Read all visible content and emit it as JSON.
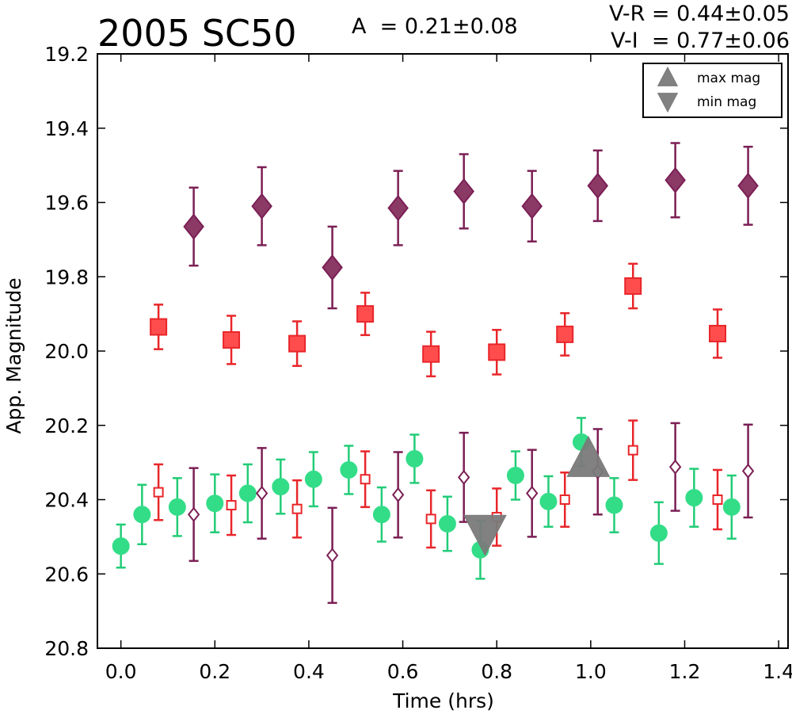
{
  "chart_data": {
    "type": "scatter",
    "title": "2005 SC50",
    "annotations": {
      "amplitude": "A  = 0.21±0.08",
      "v_r": "V-R = 0.44±0.05",
      "v_i": "V-I  = 0.77±0.06"
    },
    "xlabel": "Time (hrs)",
    "ylabel": "App. Magnitude",
    "xlim": [
      -0.05,
      1.42
    ],
    "ylim": [
      20.8,
      19.2
    ],
    "y_inverted": true,
    "x_ticks": [
      0.0,
      0.2,
      0.4,
      0.6,
      0.8,
      1.0,
      1.2,
      1.4
    ],
    "x_tick_labels": [
      "0.0",
      "0.2",
      "0.4",
      "0.6",
      "0.8",
      "1.0",
      "1.2",
      "1.4"
    ],
    "y_ticks": [
      19.2,
      19.4,
      19.6,
      19.8,
      20.0,
      20.2,
      20.4,
      20.6,
      20.8
    ],
    "y_tick_labels": [
      "19.2",
      "19.4",
      "19.6",
      "19.8",
      "20.0",
      "20.2",
      "20.4",
      "20.6",
      "20.8"
    ],
    "grid": false,
    "legend": {
      "placement": "top-right",
      "entries": [
        {
          "label": "max mag",
          "marker": "triangle-up",
          "color": "#7a7a7a"
        },
        {
          "label": "min mag",
          "marker": "triangle-down",
          "color": "#7a7a7a"
        }
      ]
    },
    "series": [
      {
        "marker": "diamond-filled",
        "color": "#7b1f55",
        "face": "#8b3a66",
        "points": [
          {
            "x": 0.155,
            "y": 19.665,
            "err": 0.105
          },
          {
            "x": 0.3,
            "y": 19.61,
            "err": 0.105
          },
          {
            "x": 0.45,
            "y": 19.775,
            "err": 0.11
          },
          {
            "x": 0.59,
            "y": 19.615,
            "err": 0.1
          },
          {
            "x": 0.73,
            "y": 19.57,
            "err": 0.1
          },
          {
            "x": 0.875,
            "y": 19.61,
            "err": 0.095
          },
          {
            "x": 1.015,
            "y": 19.555,
            "err": 0.095
          },
          {
            "x": 1.18,
            "y": 19.54,
            "err": 0.1
          },
          {
            "x": 1.335,
            "y": 19.555,
            "err": 0.105
          }
        ]
      },
      {
        "marker": "square-filled",
        "color": "#e8262a",
        "face": "#ff4d4d",
        "points": [
          {
            "x": 0.08,
            "y": 19.935,
            "err": 0.06
          },
          {
            "x": 0.235,
            "y": 19.97,
            "err": 0.065
          },
          {
            "x": 0.375,
            "y": 19.98,
            "err": 0.06
          },
          {
            "x": 0.52,
            "y": 19.9,
            "err": 0.057
          },
          {
            "x": 0.66,
            "y": 20.008,
            "err": 0.06
          },
          {
            "x": 0.8,
            "y": 20.003,
            "err": 0.06
          },
          {
            "x": 0.945,
            "y": 19.955,
            "err": 0.057
          },
          {
            "x": 1.09,
            "y": 19.825,
            "err": 0.06
          },
          {
            "x": 1.27,
            "y": 19.953,
            "err": 0.065
          }
        ]
      },
      {
        "marker": "circle-filled",
        "color": "#22cc77",
        "face": "#33dd88",
        "points": [
          {
            "x": 0.0,
            "y": 20.525,
            "err": 0.058
          },
          {
            "x": 0.045,
            "y": 20.44,
            "err": 0.08
          },
          {
            "x": 0.12,
            "y": 20.42,
            "err": 0.078
          },
          {
            "x": 0.2,
            "y": 20.41,
            "err": 0.078
          },
          {
            "x": 0.27,
            "y": 20.383,
            "err": 0.078
          },
          {
            "x": 0.34,
            "y": 20.365,
            "err": 0.073
          },
          {
            "x": 0.41,
            "y": 20.345,
            "err": 0.073
          },
          {
            "x": 0.485,
            "y": 20.32,
            "err": 0.065
          },
          {
            "x": 0.555,
            "y": 20.44,
            "err": 0.073
          },
          {
            "x": 0.625,
            "y": 20.29,
            "err": 0.065
          },
          {
            "x": 0.695,
            "y": 20.465,
            "err": 0.073
          },
          {
            "x": 0.765,
            "y": 20.535,
            "err": 0.078
          },
          {
            "x": 0.84,
            "y": 20.335,
            "err": 0.065
          },
          {
            "x": 0.91,
            "y": 20.405,
            "err": 0.068
          },
          {
            "x": 0.98,
            "y": 20.245,
            "err": 0.065
          },
          {
            "x": 1.05,
            "y": 20.415,
            "err": 0.073
          },
          {
            "x": 1.145,
            "y": 20.49,
            "err": 0.083
          },
          {
            "x": 1.22,
            "y": 20.395,
            "err": 0.078
          },
          {
            "x": 1.3,
            "y": 20.42,
            "err": 0.085
          }
        ]
      },
      {
        "marker": "square-open",
        "color": "#e8262a",
        "points": [
          {
            "x": 0.08,
            "y": 20.38,
            "err": 0.075
          },
          {
            "x": 0.235,
            "y": 20.415,
            "err": 0.08
          },
          {
            "x": 0.375,
            "y": 20.425,
            "err": 0.077
          },
          {
            "x": 0.52,
            "y": 20.345,
            "err": 0.075
          },
          {
            "x": 0.66,
            "y": 20.452,
            "err": 0.077
          },
          {
            "x": 0.8,
            "y": 20.447,
            "err": 0.077
          },
          {
            "x": 0.945,
            "y": 20.4,
            "err": 0.073
          },
          {
            "x": 1.09,
            "y": 20.267,
            "err": 0.08
          },
          {
            "x": 1.27,
            "y": 20.4,
            "err": 0.08
          }
        ]
      },
      {
        "marker": "diamond-open",
        "color": "#7b1f55",
        "points": [
          {
            "x": 0.155,
            "y": 20.44,
            "err": 0.125
          },
          {
            "x": 0.3,
            "y": 20.383,
            "err": 0.122
          },
          {
            "x": 0.45,
            "y": 20.55,
            "err": 0.128
          },
          {
            "x": 0.59,
            "y": 20.387,
            "err": 0.115
          },
          {
            "x": 0.73,
            "y": 20.34,
            "err": 0.12
          },
          {
            "x": 0.875,
            "y": 20.383,
            "err": 0.117
          },
          {
            "x": 1.015,
            "y": 20.325,
            "err": 0.115
          },
          {
            "x": 1.18,
            "y": 20.312,
            "err": 0.118
          },
          {
            "x": 1.335,
            "y": 20.323,
            "err": 0.125
          }
        ]
      }
    ],
    "extrema": [
      {
        "type": "max",
        "marker": "triangle-up",
        "x": 0.995,
        "y": 20.29,
        "color": "#7a7a7a"
      },
      {
        "type": "min",
        "marker": "triangle-down",
        "x": 0.775,
        "y": 20.49,
        "color": "#7a7a7a"
      }
    ]
  }
}
